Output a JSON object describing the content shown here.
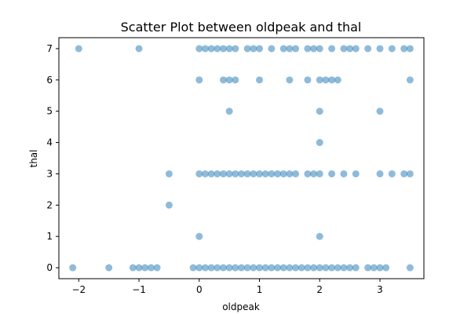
{
  "chart_data": {
    "type": "scatter",
    "title": "Scatter Plot between oldpeak and thal",
    "xlabel": "oldpeak",
    "ylabel": "thal",
    "xlim": [
      -2.33,
      3.73
    ],
    "ylim": [
      -0.35,
      7.35
    ],
    "xticks": [
      -2,
      -1,
      0,
      1,
      2,
      3
    ],
    "yticks": [
      0,
      1,
      2,
      3,
      4,
      5,
      6,
      7
    ],
    "grid": false,
    "marker_color": "#1f77b4",
    "marker_alpha": 0.5,
    "points": [
      {
        "x": -2.0,
        "y": 7
      },
      {
        "x": -1.0,
        "y": 7
      },
      {
        "x": 0.0,
        "y": 7
      },
      {
        "x": 0.1,
        "y": 7
      },
      {
        "x": 0.2,
        "y": 7
      },
      {
        "x": 0.3,
        "y": 7
      },
      {
        "x": 0.4,
        "y": 7
      },
      {
        "x": 0.5,
        "y": 7
      },
      {
        "x": 0.6,
        "y": 7
      },
      {
        "x": 0.8,
        "y": 7
      },
      {
        "x": 0.9,
        "y": 7
      },
      {
        "x": 1.0,
        "y": 7
      },
      {
        "x": 1.2,
        "y": 7
      },
      {
        "x": 1.4,
        "y": 7
      },
      {
        "x": 1.5,
        "y": 7
      },
      {
        "x": 1.6,
        "y": 7
      },
      {
        "x": 1.8,
        "y": 7
      },
      {
        "x": 1.9,
        "y": 7
      },
      {
        "x": 2.0,
        "y": 7
      },
      {
        "x": 2.2,
        "y": 7
      },
      {
        "x": 2.4,
        "y": 7
      },
      {
        "x": 2.5,
        "y": 7
      },
      {
        "x": 2.6,
        "y": 7
      },
      {
        "x": 2.8,
        "y": 7
      },
      {
        "x": 3.0,
        "y": 7
      },
      {
        "x": 3.2,
        "y": 7
      },
      {
        "x": 3.4,
        "y": 7
      },
      {
        "x": 3.5,
        "y": 7
      },
      {
        "x": 0.0,
        "y": 6
      },
      {
        "x": 0.4,
        "y": 6
      },
      {
        "x": 0.5,
        "y": 6
      },
      {
        "x": 0.6,
        "y": 6
      },
      {
        "x": 1.0,
        "y": 6
      },
      {
        "x": 1.5,
        "y": 6
      },
      {
        "x": 1.8,
        "y": 6
      },
      {
        "x": 2.0,
        "y": 6
      },
      {
        "x": 2.1,
        "y": 6
      },
      {
        "x": 2.2,
        "y": 6
      },
      {
        "x": 2.3,
        "y": 6
      },
      {
        "x": 3.5,
        "y": 6
      },
      {
        "x": 0.5,
        "y": 5
      },
      {
        "x": 2.0,
        "y": 5
      },
      {
        "x": 3.0,
        "y": 5
      },
      {
        "x": 2.0,
        "y": 4
      },
      {
        "x": -0.5,
        "y": 3
      },
      {
        "x": 0.0,
        "y": 3
      },
      {
        "x": 0.1,
        "y": 3
      },
      {
        "x": 0.2,
        "y": 3
      },
      {
        "x": 0.3,
        "y": 3
      },
      {
        "x": 0.4,
        "y": 3
      },
      {
        "x": 0.5,
        "y": 3
      },
      {
        "x": 0.6,
        "y": 3
      },
      {
        "x": 0.7,
        "y": 3
      },
      {
        "x": 0.8,
        "y": 3
      },
      {
        "x": 0.9,
        "y": 3
      },
      {
        "x": 1.0,
        "y": 3
      },
      {
        "x": 1.1,
        "y": 3
      },
      {
        "x": 1.2,
        "y": 3
      },
      {
        "x": 1.3,
        "y": 3
      },
      {
        "x": 1.4,
        "y": 3
      },
      {
        "x": 1.5,
        "y": 3
      },
      {
        "x": 1.6,
        "y": 3
      },
      {
        "x": 1.8,
        "y": 3
      },
      {
        "x": 1.9,
        "y": 3
      },
      {
        "x": 2.0,
        "y": 3
      },
      {
        "x": 2.2,
        "y": 3
      },
      {
        "x": 2.4,
        "y": 3
      },
      {
        "x": 2.6,
        "y": 3
      },
      {
        "x": 3.0,
        "y": 3
      },
      {
        "x": 3.2,
        "y": 3
      },
      {
        "x": 3.4,
        "y": 3
      },
      {
        "x": 3.5,
        "y": 3
      },
      {
        "x": -0.5,
        "y": 2
      },
      {
        "x": 0.0,
        "y": 1
      },
      {
        "x": 2.0,
        "y": 1
      },
      {
        "x": -2.1,
        "y": 0
      },
      {
        "x": -1.5,
        "y": 0
      },
      {
        "x": -1.1,
        "y": 0
      },
      {
        "x": -1.0,
        "y": 0
      },
      {
        "x": -0.9,
        "y": 0
      },
      {
        "x": -0.8,
        "y": 0
      },
      {
        "x": -0.7,
        "y": 0
      },
      {
        "x": -0.1,
        "y": 0
      },
      {
        "x": 0.0,
        "y": 0
      },
      {
        "x": 0.1,
        "y": 0
      },
      {
        "x": 0.2,
        "y": 0
      },
      {
        "x": 0.3,
        "y": 0
      },
      {
        "x": 0.4,
        "y": 0
      },
      {
        "x": 0.5,
        "y": 0
      },
      {
        "x": 0.6,
        "y": 0
      },
      {
        "x": 0.7,
        "y": 0
      },
      {
        "x": 0.8,
        "y": 0
      },
      {
        "x": 0.9,
        "y": 0
      },
      {
        "x": 1.0,
        "y": 0
      },
      {
        "x": 1.1,
        "y": 0
      },
      {
        "x": 1.2,
        "y": 0
      },
      {
        "x": 1.3,
        "y": 0
      },
      {
        "x": 1.4,
        "y": 0
      },
      {
        "x": 1.5,
        "y": 0
      },
      {
        "x": 1.6,
        "y": 0
      },
      {
        "x": 1.7,
        "y": 0
      },
      {
        "x": 1.8,
        "y": 0
      },
      {
        "x": 1.9,
        "y": 0
      },
      {
        "x": 2.0,
        "y": 0
      },
      {
        "x": 2.1,
        "y": 0
      },
      {
        "x": 2.2,
        "y": 0
      },
      {
        "x": 2.3,
        "y": 0
      },
      {
        "x": 2.4,
        "y": 0
      },
      {
        "x": 2.5,
        "y": 0
      },
      {
        "x": 2.6,
        "y": 0
      },
      {
        "x": 2.8,
        "y": 0
      },
      {
        "x": 2.9,
        "y": 0
      },
      {
        "x": 3.0,
        "y": 0
      },
      {
        "x": 3.1,
        "y": 0
      },
      {
        "x": 3.5,
        "y": 0
      }
    ]
  }
}
